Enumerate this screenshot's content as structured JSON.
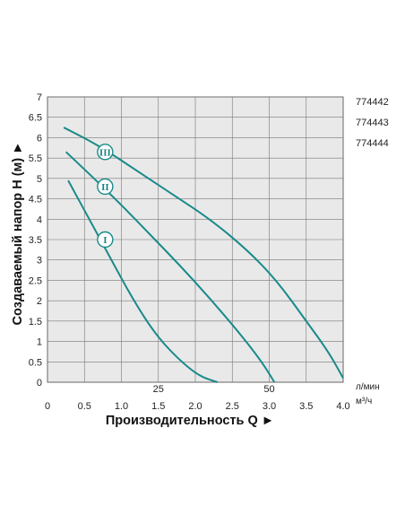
{
  "chart_data": {
    "type": "line",
    "ylabel": "Создаваемый напор Н (м) ►",
    "xlabel": "Производительность Q ►",
    "y_ticks": [
      "7",
      "6.5",
      "6",
      "5.5",
      "5",
      "4.5",
      "4",
      "3.5",
      "3",
      "2.5",
      "2",
      "1.5",
      "1",
      "0.5",
      "0"
    ],
    "x_ticks_m3h": [
      "0",
      "0.5",
      "1.0",
      "1.5",
      "2.0",
      "2.5",
      "3.0",
      "3.5",
      "4.0"
    ],
    "x_ticks_lpm": [
      "25",
      "50"
    ],
    "unit_lpm": "л/мин",
    "unit_m3h": "м³/ч",
    "xlim": [
      0,
      4.0
    ],
    "ylim": [
      0,
      7
    ],
    "grid": true,
    "legend_position": "right",
    "models": [
      "774442",
      "774443",
      "774444"
    ],
    "line_color": "#1a8a8a",
    "series": [
      {
        "marker": "I",
        "marker_at": [
          0.78,
          3.5
        ],
        "x": [
          0.28,
          0.55,
          0.85,
          1.15,
          1.45,
          1.75,
          2.05,
          2.3
        ],
        "y": [
          4.95,
          4.05,
          3.05,
          2.05,
          1.2,
          0.6,
          0.15,
          0.0
        ]
      },
      {
        "marker": "II",
        "marker_at": [
          0.78,
          4.8
        ],
        "x": [
          0.25,
          0.6,
          1.0,
          1.4,
          1.8,
          2.2,
          2.6,
          2.9,
          3.07
        ],
        "y": [
          5.65,
          5.05,
          4.35,
          3.6,
          2.85,
          2.05,
          1.2,
          0.5,
          0.0
        ]
      },
      {
        "marker": "III",
        "marker_at": [
          0.78,
          5.65
        ],
        "x": [
          0.22,
          0.7,
          1.2,
          1.7,
          2.2,
          2.7,
          3.1,
          3.5,
          3.8,
          4.0
        ],
        "y": [
          6.25,
          5.8,
          5.2,
          4.6,
          4.0,
          3.25,
          2.5,
          1.5,
          0.75,
          0.1
        ]
      }
    ]
  }
}
